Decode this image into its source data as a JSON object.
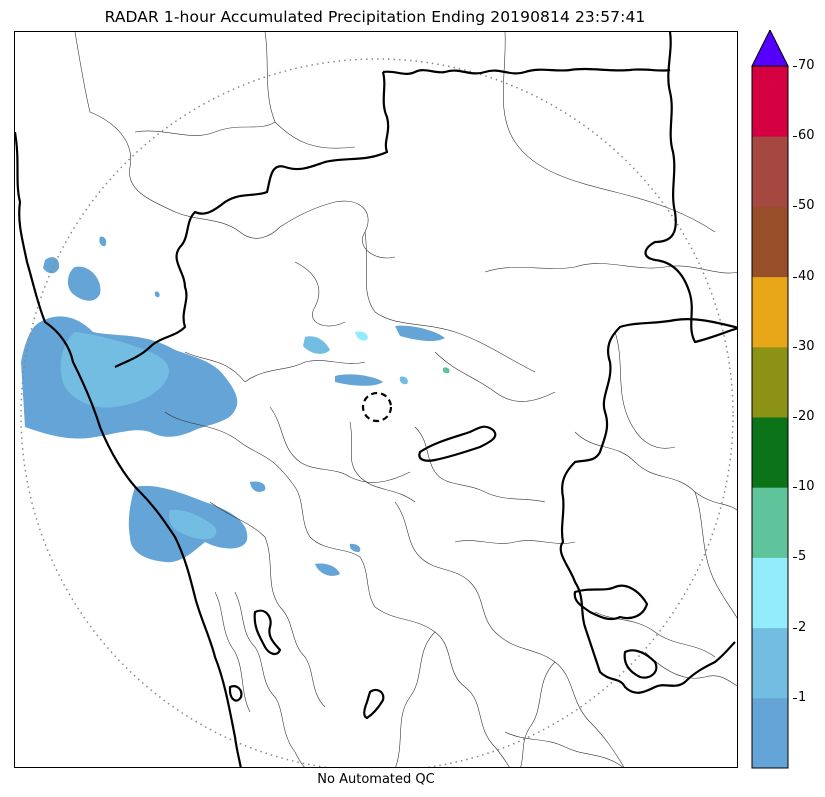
{
  "title": "RADAR 1-hour Accumulated Precipitation Ending 20190814 23:57:41",
  "footer": "No Automated QC",
  "colorbar": {
    "extend_color": "#5500ff",
    "extend_label": "",
    "bins": [
      {
        "color": "#64a4d6"
      },
      {
        "color": "#74bde2"
      },
      {
        "color": "#93ecfc"
      },
      {
        "color": "#5fc49c"
      },
      {
        "color": "#0d7319"
      },
      {
        "color": "#8b9216"
      },
      {
        "color": "#e8a718"
      },
      {
        "color": "#984f29"
      },
      {
        "color": "#a64842"
      },
      {
        "color": "#d40042"
      }
    ],
    "tick_labels": [
      "1",
      "2",
      "5",
      "10",
      "20",
      "30",
      "40",
      "50",
      "60",
      "70"
    ]
  },
  "legend_units": "",
  "map": {
    "range_ring_style": "dotted",
    "radar_site_marker": "dashed-circle"
  }
}
